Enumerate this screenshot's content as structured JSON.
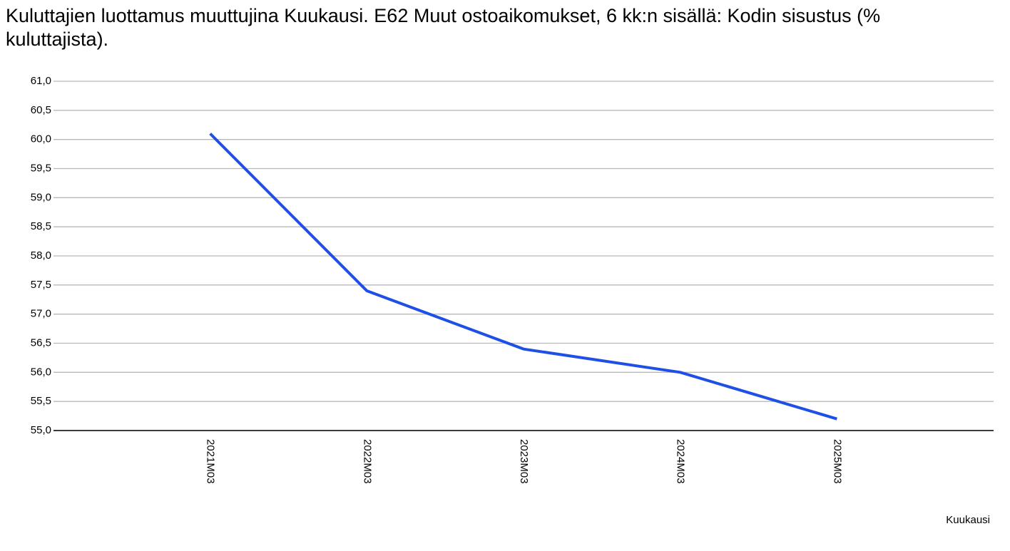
{
  "chart_data": {
    "type": "line",
    "title": "Kuluttajien luottamus muuttujina Kuukausi. E62 Muut ostoaikomukset, 6 kk:n sisällä: Kodin sisustus (% kuluttajista).",
    "x_label": "Kuukausi",
    "categories": [
      "2021M03",
      "2022M03",
      "2023M03",
      "2024M03",
      "2025M03"
    ],
    "values": [
      60.1,
      57.4,
      56.4,
      56.0,
      55.2
    ],
    "color": "#1f50e6",
    "ylim": [
      55,
      61
    ],
    "yticks": [
      {
        "value": 55,
        "label": "55,0"
      },
      {
        "value": 55.5,
        "label": "55,5"
      },
      {
        "value": 56,
        "label": "56,0"
      },
      {
        "value": 56.5,
        "label": "56,5"
      },
      {
        "value": 57,
        "label": "57,0"
      },
      {
        "value": 57.5,
        "label": "57,5"
      },
      {
        "value": 58,
        "label": "58,0"
      },
      {
        "value": 58.5,
        "label": "58,5"
      },
      {
        "value": 59,
        "label": "59,0"
      },
      {
        "value": 59.5,
        "label": "59,5"
      },
      {
        "value": 60,
        "label": "60,0"
      },
      {
        "value": 60.5,
        "label": "60,5"
      },
      {
        "value": 61,
        "label": "61,0"
      }
    ],
    "grid": true
  }
}
